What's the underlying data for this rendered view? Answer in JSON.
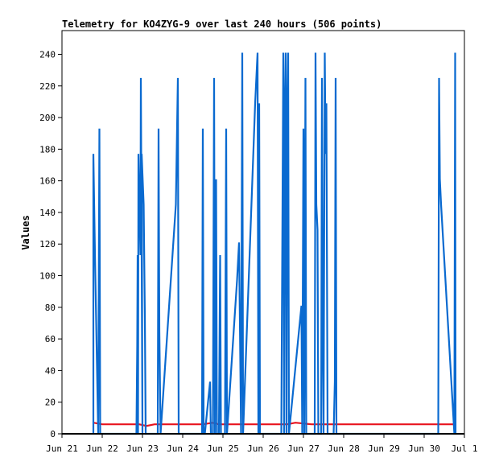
{
  "chart_data": {
    "type": "line",
    "title": "Telemetry for KO4ZYG-9 over last 240 hours (506 points)",
    "ylabel": "Values",
    "xlabel": "",
    "ylim": [
      0,
      255
    ],
    "xlim": [
      0,
      10
    ],
    "yticks": [
      0,
      20,
      40,
      60,
      80,
      100,
      120,
      140,
      160,
      180,
      200,
      220,
      240
    ],
    "xticks": [
      {
        "x": 0,
        "label": "Jun 21"
      },
      {
        "x": 1,
        "label": "Jun 22"
      },
      {
        "x": 2,
        "label": "Jun 23"
      },
      {
        "x": 3,
        "label": "Jun 24"
      },
      {
        "x": 4,
        "label": "Jun 25"
      },
      {
        "x": 5,
        "label": "Jun 26"
      },
      {
        "x": 6,
        "label": "Jun 27"
      },
      {
        "x": 7,
        "label": "Jun 28"
      },
      {
        "x": 8,
        "label": "Jun 29"
      },
      {
        "x": 9,
        "label": "Jun 30"
      },
      {
        "x": 10,
        "label": "Jul 1"
      }
    ],
    "grid": false,
    "series": [
      {
        "color": "#e8141e",
        "points": [
          [
            0.78,
            7
          ],
          [
            1.0,
            6
          ],
          [
            1.5,
            6
          ],
          [
            1.92,
            6
          ],
          [
            2.1,
            5
          ],
          [
            2.3,
            6
          ],
          [
            3.0,
            6
          ],
          [
            3.5,
            6
          ],
          [
            3.75,
            7
          ],
          [
            3.9,
            6
          ],
          [
            4.3,
            6
          ],
          [
            5.0,
            6
          ],
          [
            5.6,
            6
          ],
          [
            5.8,
            7
          ],
          [
            6.2,
            6
          ],
          [
            7.0,
            6
          ],
          [
            8.0,
            6
          ],
          [
            9.0,
            6
          ],
          [
            9.75,
            6
          ]
        ]
      },
      {
        "color": "#0a6ad0",
        "points": [
          [
            0.78,
            0
          ],
          [
            0.78,
            177
          ],
          [
            0.82,
            113
          ],
          [
            0.9,
            0
          ],
          [
            0.93,
            193
          ],
          [
            0.95,
            0
          ],
          [
            1.85,
            0
          ],
          [
            1.87,
            56
          ],
          [
            1.88,
            113
          ],
          [
            1.89,
            0
          ],
          [
            1.9,
            177
          ],
          [
            1.95,
            113
          ],
          [
            1.96,
            225
          ],
          [
            2.0,
            0
          ],
          [
            1.98,
            177
          ],
          [
            2.03,
            145
          ],
          [
            2.06,
            73
          ],
          [
            2.08,
            0
          ],
          [
            2.38,
            0
          ],
          [
            2.4,
            193
          ],
          [
            2.42,
            65
          ],
          [
            2.45,
            0
          ],
          [
            2.83,
            145
          ],
          [
            2.88,
            225
          ],
          [
            2.9,
            0
          ],
          [
            3.48,
            0
          ],
          [
            3.5,
            193
          ],
          [
            3.52,
            0
          ],
          [
            3.55,
            0
          ],
          [
            3.68,
            33
          ],
          [
            3.7,
            0
          ],
          [
            3.75,
            0
          ],
          [
            3.78,
            225
          ],
          [
            3.8,
            0
          ],
          [
            3.83,
            161
          ],
          [
            3.85,
            0
          ],
          [
            3.9,
            0
          ],
          [
            3.93,
            113
          ],
          [
            3.95,
            0
          ],
          [
            4.05,
            0
          ],
          [
            4.08,
            193
          ],
          [
            4.1,
            0
          ],
          [
            4.35,
            97
          ],
          [
            4.4,
            121
          ],
          [
            4.45,
            0
          ],
          [
            4.48,
            241
          ],
          [
            4.5,
            0
          ],
          [
            4.8,
            209
          ],
          [
            4.86,
            241
          ],
          [
            4.88,
            0
          ],
          [
            4.9,
            209
          ],
          [
            4.92,
            0
          ],
          [
            5.45,
            0
          ],
          [
            5.47,
            97
          ],
          [
            5.5,
            241
          ],
          [
            5.52,
            0
          ],
          [
            5.54,
            209
          ],
          [
            5.56,
            241
          ],
          [
            5.58,
            0
          ],
          [
            5.6,
            209
          ],
          [
            5.62,
            241
          ],
          [
            5.64,
            0
          ],
          [
            5.95,
            81
          ],
          [
            5.97,
            0
          ],
          [
            6.0,
            193
          ],
          [
            6.02,
            0
          ],
          [
            6.05,
            225
          ],
          [
            6.07,
            0
          ],
          [
            6.28,
            0
          ],
          [
            6.3,
            241
          ],
          [
            6.32,
            145
          ],
          [
            6.35,
            129
          ],
          [
            6.37,
            0
          ],
          [
            6.44,
            0
          ],
          [
            6.46,
            225
          ],
          [
            6.48,
            65
          ],
          [
            6.5,
            0
          ],
          [
            6.53,
            241
          ],
          [
            6.55,
            177
          ],
          [
            6.57,
            209
          ],
          [
            6.6,
            0
          ],
          [
            6.75,
            0
          ],
          [
            6.78,
            33
          ],
          [
            6.8,
            225
          ],
          [
            6.82,
            0
          ],
          [
            9.35,
            0
          ],
          [
            9.37,
            225
          ],
          [
            9.39,
            161
          ],
          [
            9.42,
            145
          ],
          [
            9.75,
            0
          ],
          [
            9.77,
            241
          ],
          [
            9.78,
            0
          ]
        ]
      }
    ]
  }
}
